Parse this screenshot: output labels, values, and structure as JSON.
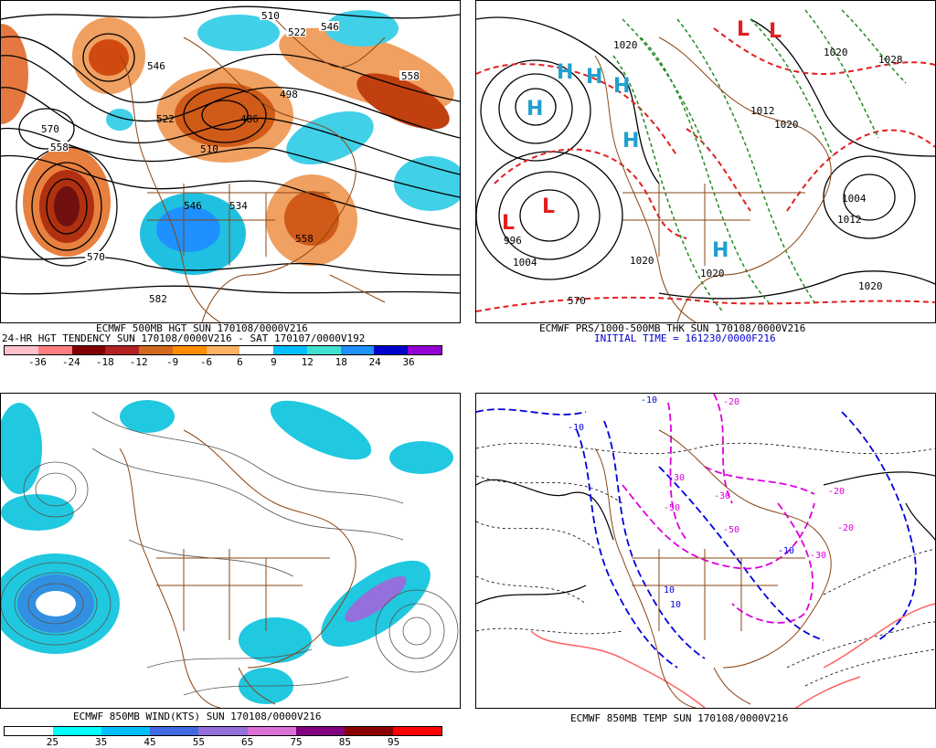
{
  "panels": {
    "top_left": {
      "caption1": "ECMWF 500MB HGT SUN 170108/0000V216",
      "caption2": "24-HR HGT TENDENCY SUN 170108/0000V216 - SAT 170107/0000V192",
      "colorbar": {
        "labels": [
          "-36",
          "-24",
          "-18",
          "-12",
          "-9",
          "-6",
          "6",
          "9",
          "12",
          "18",
          "24",
          "36"
        ],
        "colors": [
          "#ffc0cb",
          "#ff7f7f",
          "#800000",
          "#b22222",
          "#d2691e",
          "#ff8c00",
          "#ffb266",
          "#ffffff",
          "#00bfff",
          "#40e0d0",
          "#1e90ff",
          "#0000cd",
          "#9400d3"
        ]
      },
      "contour_labels": [
        "510",
        "522",
        "546",
        "570",
        "558",
        "546",
        "522",
        "486",
        "498",
        "558",
        "510",
        "570",
        "558",
        "534",
        "546",
        "570",
        "582",
        "558"
      ]
    },
    "top_right": {
      "caption1": "ECMWF PRS/1000-500MB THK SUN 170108/0000V216",
      "caption2": "INITIAL TIME = 161230/0000F216",
      "pressure_labels": [
        "1020",
        "1028",
        "1020",
        "1012",
        "1020",
        "1004",
        "1012",
        "996",
        "1004",
        "1020",
        "1020",
        "1020",
        "570"
      ],
      "highs_lows": [
        "H",
        "H",
        "H",
        "H",
        "H",
        "H",
        "L",
        "L",
        "L",
        "L"
      ]
    },
    "bottom_left": {
      "caption1": "ECMWF 850MB WIND(KTS) SUN 170108/0000V216",
      "colorbar": {
        "labels": [
          "25",
          "35",
          "45",
          "55",
          "65",
          "75",
          "85",
          "95"
        ],
        "colors": [
          "#ffffff",
          "#00ffff",
          "#00bfff",
          "#4169e1",
          "#9370db",
          "#da70d6",
          "#800080",
          "#8b0000",
          "#ff0000"
        ]
      }
    },
    "bottom_right": {
      "caption1": "ECMWF 850MB TEMP SUN 170108/0000V216",
      "temp_labels": [
        "-10",
        "-10",
        "-20",
        "-30",
        "-50",
        "-50",
        "-30",
        "-20",
        "-30",
        "-10",
        "-20",
        "10",
        "10"
      ]
    }
  },
  "colors": {
    "coastline": "#8b4513",
    "warm_anomaly": "#e06020",
    "cold_anomaly": "#20c0e0",
    "contour": "#000000",
    "thickness": "#e02020",
    "thickness_green": "#228b22",
    "high": "#1fa0d0",
    "low": "#e02020"
  }
}
